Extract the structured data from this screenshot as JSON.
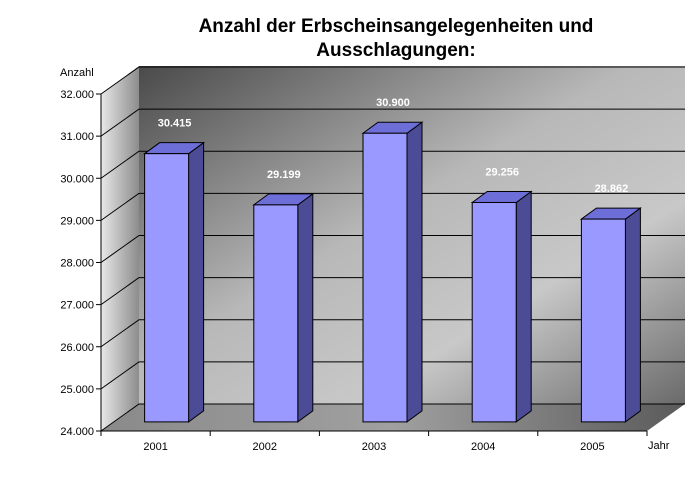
{
  "chart_data": {
    "type": "bar",
    "title_lines": [
      "Anzahl der Erbscheinsangelegenheiten und",
      "Ausschlagungen:"
    ],
    "xlabel": "Jahr",
    "ylabel": "Anzahl",
    "categories": [
      "2001",
      "2002",
      "2003",
      "2004",
      "2005"
    ],
    "values": [
      30415,
      29199,
      30900,
      29256,
      28862
    ],
    "value_labels": [
      "30.415",
      "29.199",
      "30.900",
      "29.256",
      "28.862"
    ],
    "ylim": [
      24000,
      32000
    ],
    "y_ticks": [
      24000,
      25000,
      26000,
      27000,
      28000,
      29000,
      30000,
      31000,
      32000
    ],
    "y_tick_labels": [
      "24.000",
      "25.000",
      "26.000",
      "27.000",
      "28.000",
      "29.000",
      "30.000",
      "31.000",
      "32.000"
    ],
    "grid": true,
    "legend": "none",
    "colors": {
      "bar_front": "#9999ff",
      "bar_top": "#6e6ed8",
      "bar_side": "#4b4b96",
      "bar_edge": "#000000",
      "gridline": "#000000",
      "data_label": "#ffffff"
    }
  }
}
